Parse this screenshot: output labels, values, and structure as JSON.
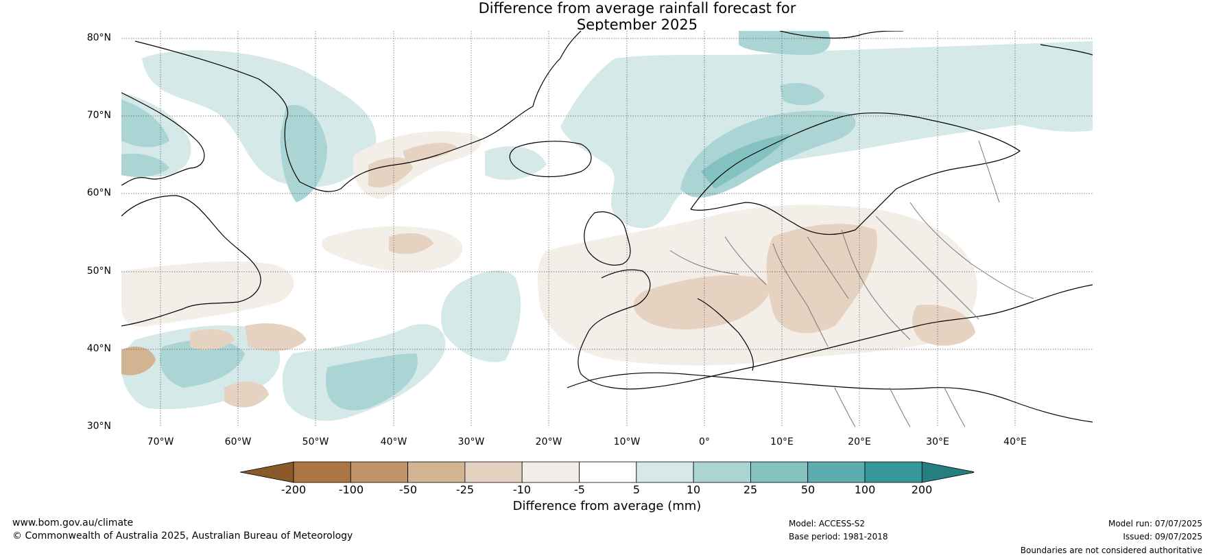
{
  "title_line1": "Difference from average rainfall forecast for",
  "title_line2": "September 2025",
  "lat_labels": [
    "80°N",
    "70°N",
    "60°N",
    "50°N",
    "40°N",
    "30°N"
  ],
  "lon_labels": [
    "70°W",
    "60°W",
    "50°W",
    "40°W",
    "30°W",
    "20°W",
    "10°W",
    "0°",
    "10°E",
    "20°E",
    "30°E",
    "40°E"
  ],
  "colorbar": {
    "ticks": [
      "-200",
      "-100",
      "-50",
      "-25",
      "-10",
      "-5",
      "5",
      "10",
      "25",
      "50",
      "100",
      "200"
    ],
    "colors": [
      "#8b5a2b",
      "#ad7543",
      "#c0946a",
      "#d3b492",
      "#e5d2c0",
      "#f3eee8",
      "#ffffff",
      "#d5e9e8",
      "#aad5d4",
      "#84c2c1",
      "#5badaf",
      "#35999a",
      "#257f80"
    ],
    "label": "Difference from average (mm)"
  },
  "footer": {
    "website": "www.bom.gov.au/climate",
    "copyright": "© Commonwealth of Australia 2025, Australian Bureau of Meteorology",
    "model": "Model: ACCESS-S2",
    "base_period": "Base period: 1981-2018",
    "model_run": "Model run: 07/07/2025",
    "issued": "Issued: 09/07/2025",
    "disclaimer": "Boundaries are not considered authoritative"
  }
}
